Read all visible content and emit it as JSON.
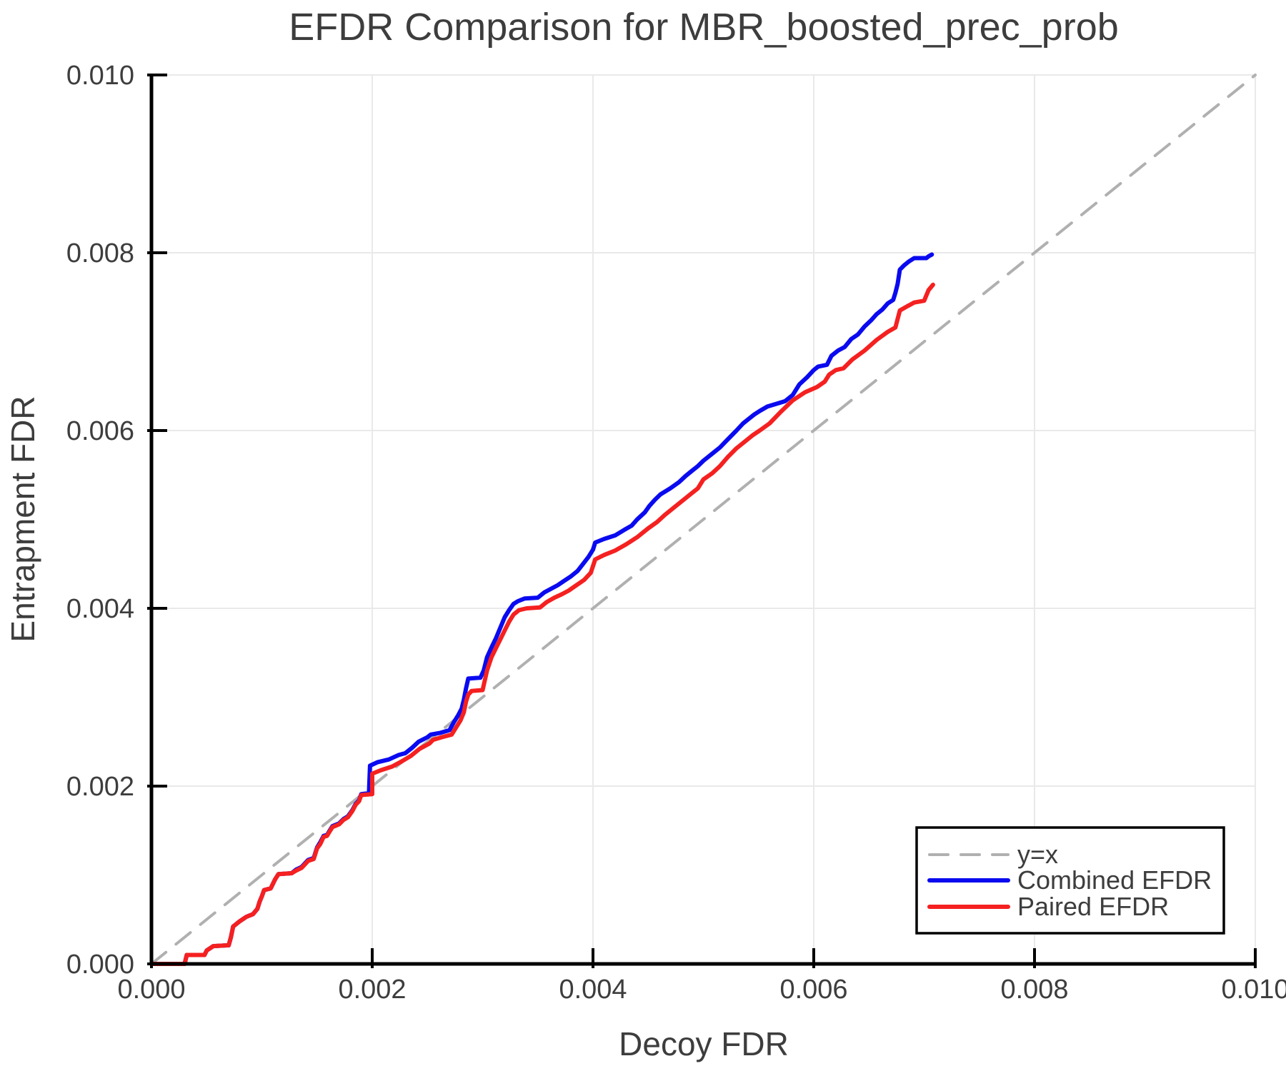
{
  "figure": {
    "title": "EFDR Comparison for MBR_boosted_prec_prob",
    "x_axis_label": "Decoy FDR",
    "y_axis_label": "Entrapment FDR"
  },
  "colors": {
    "text": "#3d3d3d",
    "grid": "#e9e9e9",
    "spine": "#000000",
    "identity_line": "#b0b0b0",
    "combined_efdr": "#0a0af0",
    "paired_efdr": "#f52020",
    "legend_border": "#000000",
    "legend_background": "#ffffff"
  },
  "chart_data": {
    "type": "line",
    "title": "EFDR Comparison for MBR_boosted_prec_prob",
    "xlabel": "Decoy FDR",
    "ylabel": "Entrapment FDR",
    "xlim": [
      0.0,
      0.01
    ],
    "ylim": [
      0.0,
      0.01
    ],
    "x_ticks": [
      0.0,
      0.002,
      0.004,
      0.006,
      0.008,
      0.01
    ],
    "y_ticks": [
      0.0,
      0.002,
      0.004,
      0.006,
      0.008,
      0.01
    ],
    "x_tick_labels": [
      "0.000",
      "0.002",
      "0.004",
      "0.006",
      "0.008",
      "0.010"
    ],
    "y_tick_labels": [
      "0.000",
      "0.002",
      "0.004",
      "0.006",
      "0.008",
      "0.010"
    ],
    "grid": true,
    "legend": {
      "position": "lower right",
      "entries": [
        "y=x",
        "Combined EFDR",
        "Paired EFDR"
      ]
    },
    "series": [
      {
        "name": "y=x",
        "color": "#b0b0b0",
        "style": "dashed",
        "width": 4,
        "points": [
          [
            0.0,
            0.0
          ],
          [
            0.01,
            0.01
          ]
        ]
      },
      {
        "name": "Combined EFDR",
        "color": "#0a0af0",
        "style": "solid",
        "width": 6,
        "points": [
          [
            0.0,
            0.0
          ],
          [
            0.0003,
            0.0
          ],
          [
            0.00032,
            0.0001
          ],
          [
            0.00048,
            0.0001
          ],
          [
            0.0005,
            0.00015
          ],
          [
            0.00056,
            0.0002
          ],
          [
            0.0007,
            0.00021
          ],
          [
            0.00072,
            0.0003
          ],
          [
            0.00074,
            0.00042
          ],
          [
            0.0008,
            0.00048
          ],
          [
            0.00086,
            0.00053
          ],
          [
            0.00092,
            0.00056
          ],
          [
            0.00096,
            0.00062
          ],
          [
            0.00098,
            0.0007
          ],
          [
            0.001,
            0.00076
          ],
          [
            0.00102,
            0.00083
          ],
          [
            0.00108,
            0.00085
          ],
          [
            0.00112,
            0.00095
          ],
          [
            0.00115,
            0.00101
          ],
          [
            0.00127,
            0.00102
          ],
          [
            0.00131,
            0.00106
          ],
          [
            0.00136,
            0.00109
          ],
          [
            0.00139,
            0.00113
          ],
          [
            0.00142,
            0.00117
          ],
          [
            0.00147,
            0.00119
          ],
          [
            0.0015,
            0.00131
          ],
          [
            0.00153,
            0.00137
          ],
          [
            0.00156,
            0.00144
          ],
          [
            0.00159,
            0.00145
          ],
          [
            0.00161,
            0.00149
          ],
          [
            0.00164,
            0.00155
          ],
          [
            0.0017,
            0.00158
          ],
          [
            0.00174,
            0.00163
          ],
          [
            0.00178,
            0.00166
          ],
          [
            0.00182,
            0.00173
          ],
          [
            0.00185,
            0.0018
          ],
          [
            0.00188,
            0.00184
          ],
          [
            0.0019,
            0.00191
          ],
          [
            0.00197,
            0.00192
          ],
          [
            0.00198,
            0.00223
          ],
          [
            0.00205,
            0.00227
          ],
          [
            0.00215,
            0.0023
          ],
          [
            0.00224,
            0.00235
          ],
          [
            0.0023,
            0.00237
          ],
          [
            0.00236,
            0.00243
          ],
          [
            0.00242,
            0.0025
          ],
          [
            0.0025,
            0.00255
          ],
          [
            0.00253,
            0.00258
          ],
          [
            0.00262,
            0.0026
          ],
          [
            0.0027,
            0.00263
          ],
          [
            0.00274,
            0.00272
          ],
          [
            0.00278,
            0.0028
          ],
          [
            0.00281,
            0.00287
          ],
          [
            0.00283,
            0.00297
          ],
          [
            0.00285,
            0.0031
          ],
          [
            0.00287,
            0.00321
          ],
          [
            0.00298,
            0.00322
          ],
          [
            0.00301,
            0.0033
          ],
          [
            0.00304,
            0.00345
          ],
          [
            0.00308,
            0.00356
          ],
          [
            0.00312,
            0.00366
          ],
          [
            0.00316,
            0.00378
          ],
          [
            0.0032,
            0.0039
          ],
          [
            0.00324,
            0.00398
          ],
          [
            0.00328,
            0.00405
          ],
          [
            0.00332,
            0.00408
          ],
          [
            0.00338,
            0.00411
          ],
          [
            0.0035,
            0.00412
          ],
          [
            0.00356,
            0.00418
          ],
          [
            0.00362,
            0.00422
          ],
          [
            0.00368,
            0.00426
          ],
          [
            0.00374,
            0.00431
          ],
          [
            0.0038,
            0.00436
          ],
          [
            0.00386,
            0.00442
          ],
          [
            0.00391,
            0.0045
          ],
          [
            0.00396,
            0.00458
          ],
          [
            0.004,
            0.00466
          ],
          [
            0.00402,
            0.00474
          ],
          [
            0.0041,
            0.00478
          ],
          [
            0.0042,
            0.00482
          ],
          [
            0.00428,
            0.00488
          ],
          [
            0.00435,
            0.00493
          ],
          [
            0.0044,
            0.005
          ],
          [
            0.00447,
            0.00508
          ],
          [
            0.00451,
            0.00515
          ],
          [
            0.00456,
            0.00522
          ],
          [
            0.00461,
            0.00528
          ],
          [
            0.0047,
            0.00535
          ],
          [
            0.00478,
            0.00542
          ],
          [
            0.00484,
            0.00549
          ],
          [
            0.0049,
            0.00555
          ],
          [
            0.00495,
            0.0056
          ],
          [
            0.005,
            0.00566
          ],
          [
            0.00508,
            0.00574
          ],
          [
            0.00515,
            0.00581
          ],
          [
            0.00522,
            0.0059
          ],
          [
            0.0053,
            0.006
          ],
          [
            0.00536,
            0.00608
          ],
          [
            0.00541,
            0.00613
          ],
          [
            0.00546,
            0.00618
          ],
          [
            0.00551,
            0.00622
          ],
          [
            0.00558,
            0.00627
          ],
          [
            0.00566,
            0.0063
          ],
          [
            0.00574,
            0.00633
          ],
          [
            0.00581,
            0.0064
          ],
          [
            0.00587,
            0.00652
          ],
          [
            0.00594,
            0.0066
          ],
          [
            0.006,
            0.00668
          ],
          [
            0.00604,
            0.00672
          ],
          [
            0.00612,
            0.00674
          ],
          [
            0.00616,
            0.00684
          ],
          [
            0.00622,
            0.0069
          ],
          [
            0.00628,
            0.00694
          ],
          [
            0.00634,
            0.00703
          ],
          [
            0.0064,
            0.00708
          ],
          [
            0.00646,
            0.00717
          ],
          [
            0.00652,
            0.00724
          ],
          [
            0.00657,
            0.00731
          ],
          [
            0.00662,
            0.00736
          ],
          [
            0.00667,
            0.00743
          ],
          [
            0.00672,
            0.00747
          ],
          [
            0.00674,
            0.00755
          ],
          [
            0.00676,
            0.00765
          ],
          [
            0.00678,
            0.00781
          ],
          [
            0.00682,
            0.00786
          ],
          [
            0.00686,
            0.0079
          ],
          [
            0.00691,
            0.00794
          ],
          [
            0.00702,
            0.00794
          ],
          [
            0.00704,
            0.00796
          ],
          [
            0.00707,
            0.00798
          ]
        ]
      },
      {
        "name": "Paired EFDR",
        "color": "#f52020",
        "style": "solid",
        "width": 6,
        "points": [
          [
            0.0,
            0.0
          ],
          [
            0.0003,
            0.0
          ],
          [
            0.00032,
            0.0001
          ],
          [
            0.00048,
            0.0001
          ],
          [
            0.0005,
            0.00015
          ],
          [
            0.00056,
            0.0002
          ],
          [
            0.0007,
            0.00021
          ],
          [
            0.00072,
            0.0003
          ],
          [
            0.00074,
            0.00042
          ],
          [
            0.0008,
            0.00048
          ],
          [
            0.00086,
            0.00053
          ],
          [
            0.00092,
            0.00056
          ],
          [
            0.00096,
            0.00062
          ],
          [
            0.00098,
            0.0007
          ],
          [
            0.001,
            0.00076
          ],
          [
            0.00102,
            0.00083
          ],
          [
            0.00108,
            0.00085
          ],
          [
            0.00112,
            0.00095
          ],
          [
            0.00115,
            0.00101
          ],
          [
            0.00127,
            0.00102
          ],
          [
            0.00131,
            0.00105
          ],
          [
            0.00136,
            0.00108
          ],
          [
            0.00139,
            0.00112
          ],
          [
            0.00142,
            0.00116
          ],
          [
            0.00147,
            0.00118
          ],
          [
            0.0015,
            0.0013
          ],
          [
            0.00153,
            0.00135
          ],
          [
            0.00156,
            0.00143
          ],
          [
            0.00159,
            0.00144
          ],
          [
            0.00161,
            0.00148
          ],
          [
            0.00164,
            0.00154
          ],
          [
            0.0017,
            0.00157
          ],
          [
            0.00174,
            0.00162
          ],
          [
            0.00178,
            0.00165
          ],
          [
            0.00182,
            0.00172
          ],
          [
            0.00185,
            0.00179
          ],
          [
            0.00188,
            0.00183
          ],
          [
            0.0019,
            0.0019
          ],
          [
            0.002,
            0.00191
          ],
          [
            0.002,
            0.00214
          ],
          [
            0.00208,
            0.00218
          ],
          [
            0.00218,
            0.00222
          ],
          [
            0.00227,
            0.00228
          ],
          [
            0.00235,
            0.00234
          ],
          [
            0.00243,
            0.00242
          ],
          [
            0.00252,
            0.00248
          ],
          [
            0.00255,
            0.00252
          ],
          [
            0.00263,
            0.00255
          ],
          [
            0.00272,
            0.00258
          ],
          [
            0.00276,
            0.00266
          ],
          [
            0.0028,
            0.00274
          ],
          [
            0.00283,
            0.00283
          ],
          [
            0.00285,
            0.00295
          ],
          [
            0.00287,
            0.00303
          ],
          [
            0.0029,
            0.00307
          ],
          [
            0.003,
            0.00308
          ],
          [
            0.00304,
            0.0033
          ],
          [
            0.00308,
            0.00345
          ],
          [
            0.00312,
            0.00355
          ],
          [
            0.00316,
            0.00365
          ],
          [
            0.0032,
            0.00375
          ],
          [
            0.00324,
            0.00385
          ],
          [
            0.00328,
            0.00393
          ],
          [
            0.00333,
            0.00398
          ],
          [
            0.0034,
            0.004
          ],
          [
            0.00352,
            0.00401
          ],
          [
            0.00358,
            0.00407
          ],
          [
            0.00365,
            0.00412
          ],
          [
            0.00372,
            0.00416
          ],
          [
            0.00378,
            0.0042
          ],
          [
            0.00385,
            0.00426
          ],
          [
            0.00392,
            0.00432
          ],
          [
            0.00398,
            0.0044
          ],
          [
            0.00402,
            0.00455
          ],
          [
            0.0041,
            0.0046
          ],
          [
            0.0042,
            0.00465
          ],
          [
            0.0043,
            0.00472
          ],
          [
            0.0044,
            0.0048
          ],
          [
            0.0045,
            0.0049
          ],
          [
            0.00458,
            0.00497
          ],
          [
            0.00465,
            0.00505
          ],
          [
            0.00472,
            0.00512
          ],
          [
            0.0048,
            0.0052
          ],
          [
            0.00488,
            0.00528
          ],
          [
            0.00495,
            0.00535
          ],
          [
            0.005,
            0.00545
          ],
          [
            0.00508,
            0.00552
          ],
          [
            0.00515,
            0.0056
          ],
          [
            0.00522,
            0.0057
          ],
          [
            0.0053,
            0.0058
          ],
          [
            0.00538,
            0.00588
          ],
          [
            0.00545,
            0.00595
          ],
          [
            0.00551,
            0.006
          ],
          [
            0.0056,
            0.00608
          ],
          [
            0.0057,
            0.00621
          ],
          [
            0.00581,
            0.00634
          ],
          [
            0.00592,
            0.00643
          ],
          [
            0.00603,
            0.00649
          ],
          [
            0.0061,
            0.00655
          ],
          [
            0.00614,
            0.00663
          ],
          [
            0.0062,
            0.00668
          ],
          [
            0.00627,
            0.0067
          ],
          [
            0.00635,
            0.0068
          ],
          [
            0.00646,
            0.0069
          ],
          [
            0.00657,
            0.00702
          ],
          [
            0.00667,
            0.00711
          ],
          [
            0.00674,
            0.00716
          ],
          [
            0.00678,
            0.00735
          ],
          [
            0.00685,
            0.0074
          ],
          [
            0.00691,
            0.00744
          ],
          [
            0.007,
            0.00746
          ],
          [
            0.00704,
            0.00758
          ],
          [
            0.00708,
            0.00764
          ]
        ]
      }
    ]
  }
}
